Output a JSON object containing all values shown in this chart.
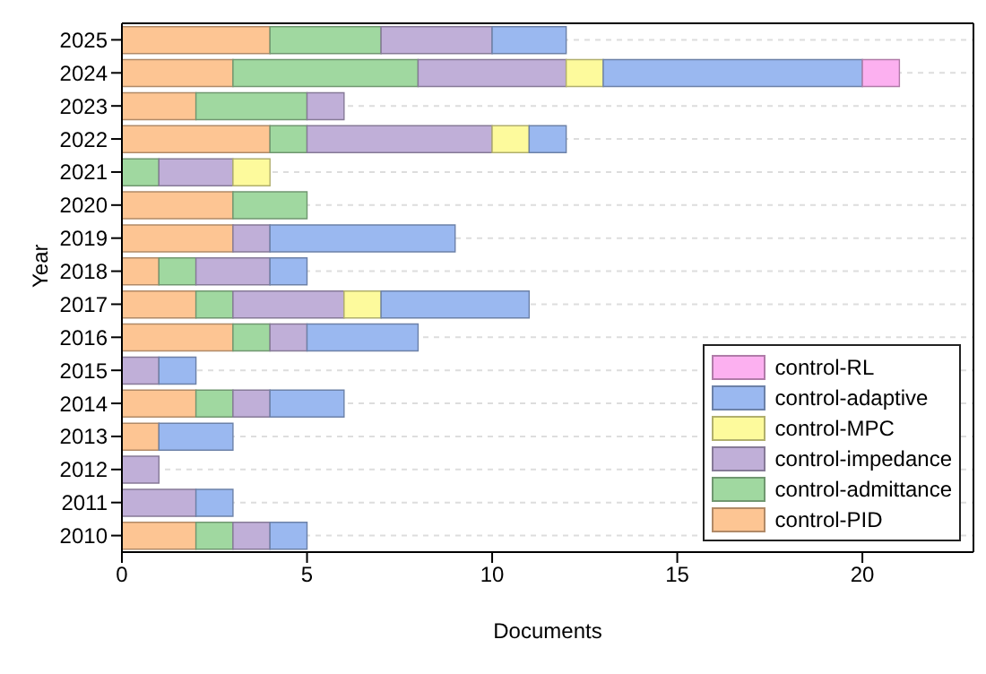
{
  "chart_data": {
    "type": "bar",
    "orientation": "horizontal",
    "stacked": true,
    "xlabel": "Documents",
    "ylabel": "Year",
    "categories": [
      "2025",
      "2024",
      "2023",
      "2022",
      "2021",
      "2020",
      "2019",
      "2018",
      "2017",
      "2016",
      "2015",
      "2014",
      "2013",
      "2012",
      "2011",
      "2010"
    ],
    "series": [
      {
        "name": "control-PID",
        "color": "#fdc593",
        "values": [
          4,
          3,
          2,
          4,
          0,
          3,
          3,
          1,
          2,
          3,
          0,
          2,
          1,
          0,
          0,
          2
        ]
      },
      {
        "name": "control-admittance",
        "color": "#a0d8a0",
        "values": [
          3,
          5,
          3,
          1,
          1,
          2,
          0,
          1,
          1,
          1,
          0,
          1,
          0,
          0,
          0,
          1
        ]
      },
      {
        "name": "control-impedance",
        "color": "#c0afd8",
        "values": [
          3,
          4,
          1,
          5,
          2,
          0,
          1,
          2,
          3,
          1,
          1,
          1,
          0,
          1,
          2,
          1
        ]
      },
      {
        "name": "control-MPC",
        "color": "#fdfa9c",
        "values": [
          0,
          1,
          0,
          1,
          1,
          0,
          0,
          0,
          1,
          0,
          0,
          0,
          0,
          0,
          0,
          0
        ]
      },
      {
        "name": "control-adaptive",
        "color": "#9ab8f0",
        "values": [
          2,
          7,
          0,
          1,
          0,
          0,
          5,
          1,
          4,
          3,
          1,
          2,
          2,
          0,
          1,
          1
        ]
      },
      {
        "name": "control-RL",
        "color": "#fcb0f0",
        "values": [
          0,
          1,
          0,
          0,
          0,
          0,
          0,
          0,
          0,
          0,
          0,
          0,
          0,
          0,
          0,
          0
        ]
      }
    ],
    "xlim": [
      0,
      23
    ],
    "xticks": [
      0,
      5,
      10,
      15,
      20
    ],
    "grid": "y",
    "legend": "bottom right"
  }
}
